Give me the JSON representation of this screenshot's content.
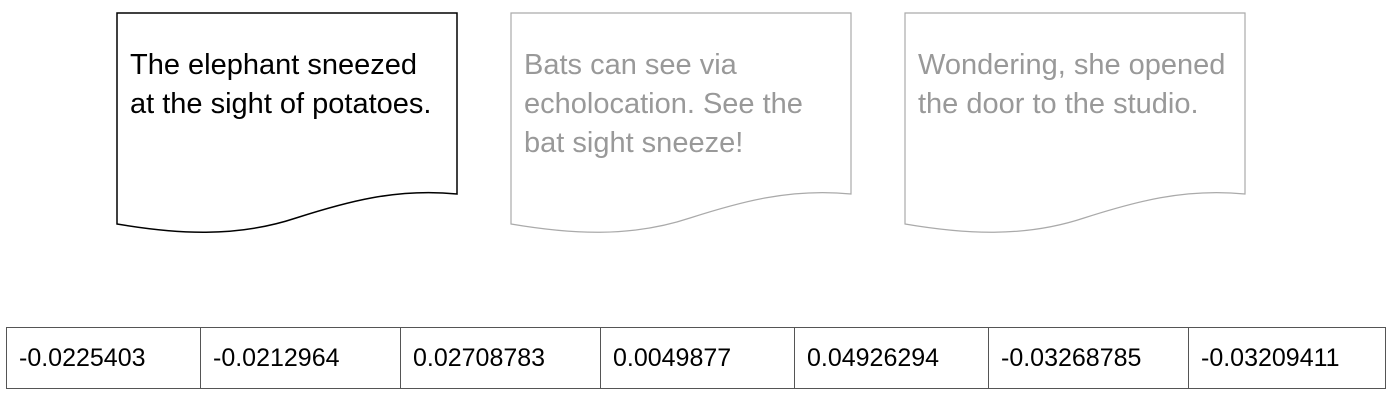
{
  "documents": [
    {
      "text": "The elephant sneezed at the sight of potatoes.",
      "color": "#000000"
    },
    {
      "text": "Bats can see via echolocation. See the bat sight sneeze!",
      "color": "#999999"
    },
    {
      "text": "Wondering, she opened the door to the studio.",
      "color": "#999999"
    }
  ],
  "vector": {
    "values": [
      "-0.0225403",
      "-0.0212964",
      "0.02708783",
      "0.0049877",
      "0.04926294",
      "-0.03268785",
      "-0.03209411"
    ]
  }
}
